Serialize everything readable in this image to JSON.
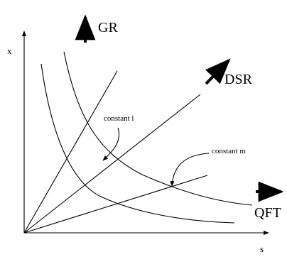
{
  "labels": {
    "gr": "GR",
    "dsr": "DSR",
    "qft": "QFT",
    "x_axis": "s",
    "y_axis": "x",
    "constant_l": "constant l",
    "constant_m": "constant m"
  }
}
